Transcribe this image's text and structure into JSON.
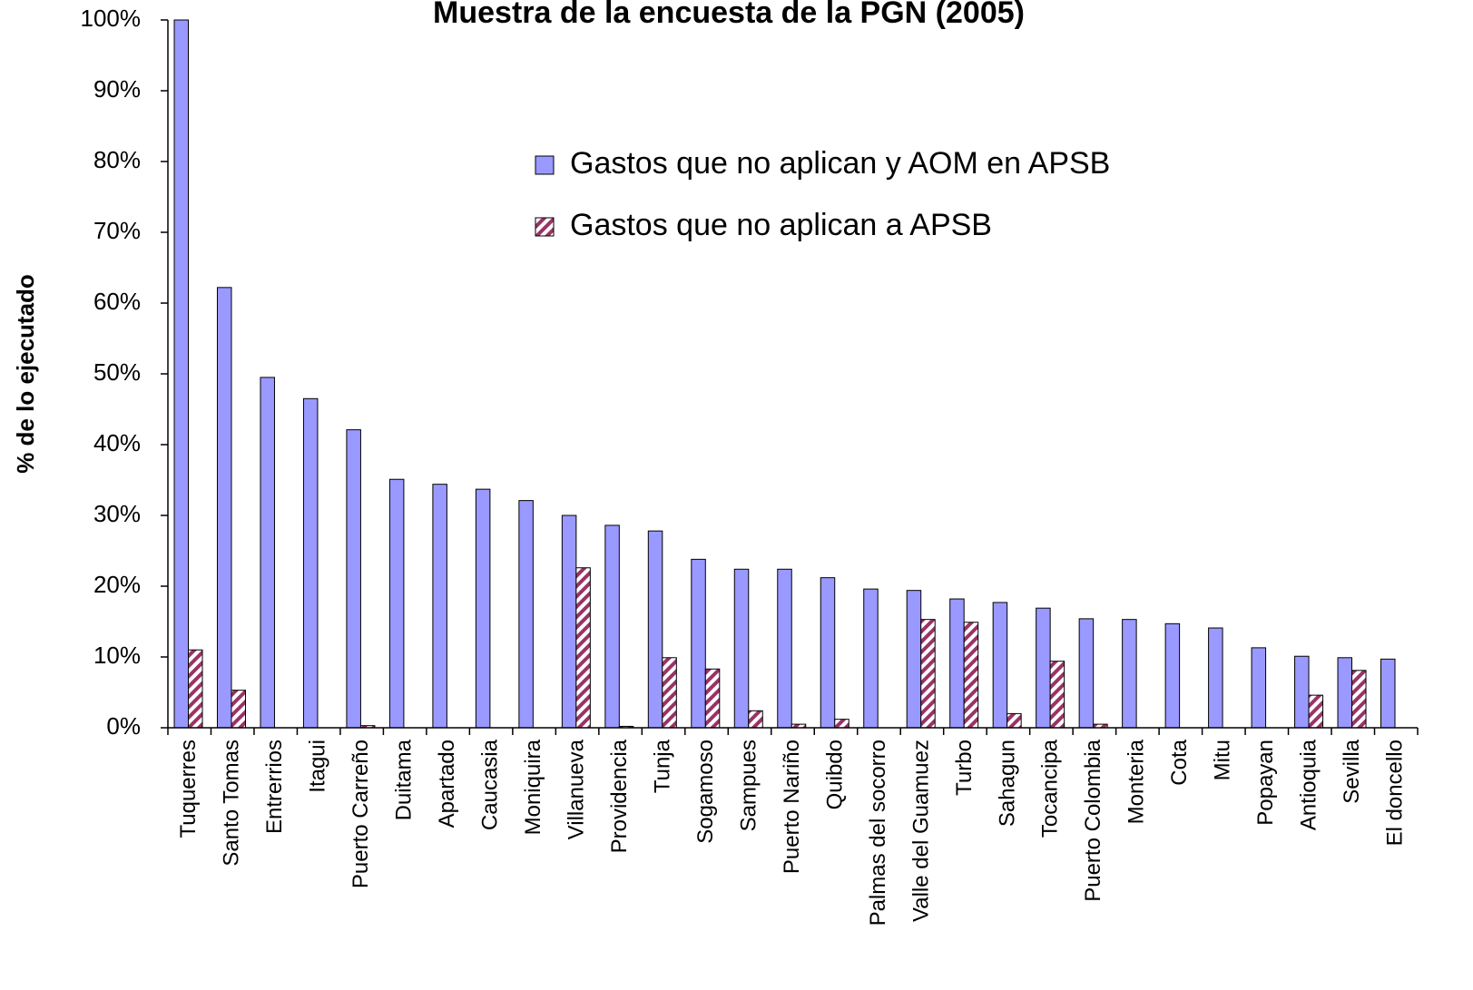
{
  "chart_data": {
    "type": "bar",
    "title": "Muestra de la encuesta de la PGN (2005)",
    "y_label": "% de lo ejecutado",
    "categories": [
      "Tuquerres",
      "Santo Tomas",
      "Entrerrios",
      "Itagui",
      "Puerto Carreño",
      "Duitama",
      "Apartado",
      "Caucasia",
      "Moniquira",
      "Villanueva",
      "Providencia",
      "Tunja",
      "Sogamoso",
      "Sampues",
      "Puerto Nariño",
      "Quibdo",
      "Palmas del socorro",
      "Valle del Guamuez",
      "Turbo",
      "Sahagun",
      "Tocancipa",
      "Puerto Colombia",
      "Monteria",
      "Cota",
      "Mitu",
      "Popayan",
      "Antioquia",
      "Sevilla",
      "El doncello"
    ],
    "series": [
      {
        "name": "Gastos que no aplican y AOM en APSB",
        "color": "#9999ff",
        "values": [
          100,
          62.2,
          49.5,
          46.5,
          42.1,
          35.1,
          34.4,
          33.7,
          32.1,
          30.0,
          28.6,
          27.8,
          23.8,
          22.4,
          22.4,
          21.2,
          19.6,
          19.4,
          18.2,
          17.7,
          16.9,
          15.4,
          15.3,
          14.7,
          14.1,
          11.3,
          10.1,
          9.9,
          9.7
        ]
      },
      {
        "name": "Gastos que no aplican a APSB",
        "color": "#993366",
        "values": [
          11.0,
          5.3,
          0,
          0,
          0.3,
          0,
          0,
          0,
          0,
          22.6,
          0.2,
          9.9,
          8.3,
          2.4,
          0.5,
          1.2,
          0,
          15.3,
          14.9,
          2.0,
          9.4,
          0.5,
          0,
          0,
          0,
          0,
          4.6,
          8.1,
          0
        ]
      }
    ],
    "ylim": [
      0,
      100
    ],
    "yticks": [
      {
        "value": 0,
        "label": "0%"
      },
      {
        "value": 10,
        "label": "10%"
      },
      {
        "value": 20,
        "label": "20%"
      },
      {
        "value": 30,
        "label": "30%"
      },
      {
        "value": 40,
        "label": "40%"
      },
      {
        "value": 50,
        "label": "50%"
      },
      {
        "value": 60,
        "label": "60%"
      },
      {
        "value": 70,
        "label": "70%"
      },
      {
        "value": 80,
        "label": "80%"
      },
      {
        "value": 90,
        "label": "90%"
      },
      {
        "value": 100,
        "label": "100%"
      }
    ],
    "grid": false
  }
}
